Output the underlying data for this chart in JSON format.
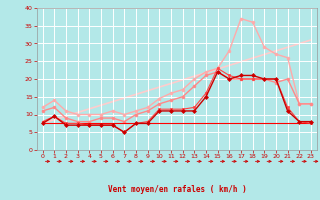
{
  "background_color": "#b3e8e8",
  "grid_color": "#ffffff",
  "xlabel": "Vent moyen/en rafales ( km/h )",
  "xlabel_color": "#cc0000",
  "tick_color": "#cc0000",
  "xlim": [
    -0.5,
    23.5
  ],
  "ylim": [
    0,
    40
  ],
  "xticks": [
    0,
    1,
    2,
    3,
    4,
    5,
    6,
    7,
    8,
    9,
    10,
    11,
    12,
    13,
    14,
    15,
    16,
    17,
    18,
    19,
    20,
    21,
    22,
    23
  ],
  "yticks": [
    0,
    5,
    10,
    15,
    20,
    25,
    30,
    35,
    40
  ],
  "lines": [
    {
      "x": [
        0,
        1,
        2,
        3,
        4,
        5,
        6,
        7,
        8,
        9,
        10,
        11,
        12,
        13,
        14,
        15,
        16,
        17,
        18,
        19,
        20,
        21,
        22,
        23
      ],
      "y": [
        7.5,
        9.5,
        7,
        7,
        7,
        7,
        7,
        5,
        7.5,
        7.5,
        11,
        11,
        11,
        11,
        15,
        22,
        20,
        21,
        21,
        20,
        20,
        11,
        8,
        8
      ],
      "color": "#cc0000",
      "lw": 1.0,
      "marker": "D",
      "ms": 2.0,
      "zorder": 5
    },
    {
      "x": [
        0,
        1,
        2,
        3,
        4,
        5,
        6,
        7,
        8,
        9,
        10,
        11,
        12,
        13,
        14,
        15,
        16,
        17,
        18,
        19,
        20,
        21,
        22,
        23
      ],
      "y": [
        8,
        9.5,
        7.5,
        7.5,
        7,
        7,
        7,
        5,
        7.5,
        8,
        11.5,
        11.5,
        11.5,
        12,
        16,
        23,
        21,
        20,
        20,
        20,
        20,
        12,
        8,
        7.5
      ],
      "color": "#ff4444",
      "lw": 0.8,
      "marker": "s",
      "ms": 2.0,
      "zorder": 4
    },
    {
      "x": [
        0,
        1,
        2,
        3,
        4,
        5,
        6,
        7,
        8,
        9,
        10,
        11,
        12,
        13,
        14,
        15,
        16,
        17,
        18,
        19,
        20,
        21,
        22,
        23
      ],
      "y": [
        11,
        12,
        9,
        8,
        8,
        9,
        9,
        8,
        10,
        11,
        13,
        14,
        15,
        18,
        21,
        22,
        20,
        20,
        20,
        20,
        19,
        20,
        13,
        13
      ],
      "color": "#ff8888",
      "lw": 1.0,
      "marker": "o",
      "ms": 2.0,
      "zorder": 3
    },
    {
      "x": [
        0,
        1,
        2,
        3,
        4,
        5,
        6,
        7,
        8,
        9,
        10,
        11,
        12,
        13,
        14,
        15,
        16,
        17,
        18,
        19,
        20,
        21,
        22,
        23
      ],
      "y": [
        12,
        14,
        11,
        10,
        10,
        10,
        11,
        10,
        11,
        12,
        14.5,
        16,
        17,
        20,
        22,
        23,
        28,
        37,
        36,
        29,
        27,
        26,
        13,
        13
      ],
      "color": "#ffaaaa",
      "lw": 1.0,
      "marker": "o",
      "ms": 2.0,
      "zorder": 2
    },
    {
      "x": [
        0,
        1,
        2,
        3,
        4,
        5,
        6,
        7,
        8,
        9,
        10,
        11,
        12,
        13,
        14,
        15,
        16,
        17,
        18,
        19,
        20,
        21,
        22,
        23
      ],
      "y": [
        7.5,
        7.5,
        7.5,
        7.5,
        7.5,
        7.5,
        7.5,
        7.5,
        7.5,
        7.5,
        7.5,
        7.5,
        7.5,
        7.5,
        7.5,
        7.5,
        7.5,
        7.5,
        7.5,
        7.5,
        7.5,
        7.5,
        7.5,
        7.5
      ],
      "color": "#ff0000",
      "lw": 0.8,
      "marker": null,
      "ms": 0,
      "zorder": 3
    },
    {
      "x": [
        0,
        23
      ],
      "y": [
        7.5,
        31
      ],
      "color": "#ffcccc",
      "lw": 1.2,
      "marker": null,
      "ms": 0,
      "zorder": 1
    }
  ],
  "arrow_color": "#cc0000",
  "figsize": [
    3.2,
    2.0
  ],
  "dpi": 100
}
